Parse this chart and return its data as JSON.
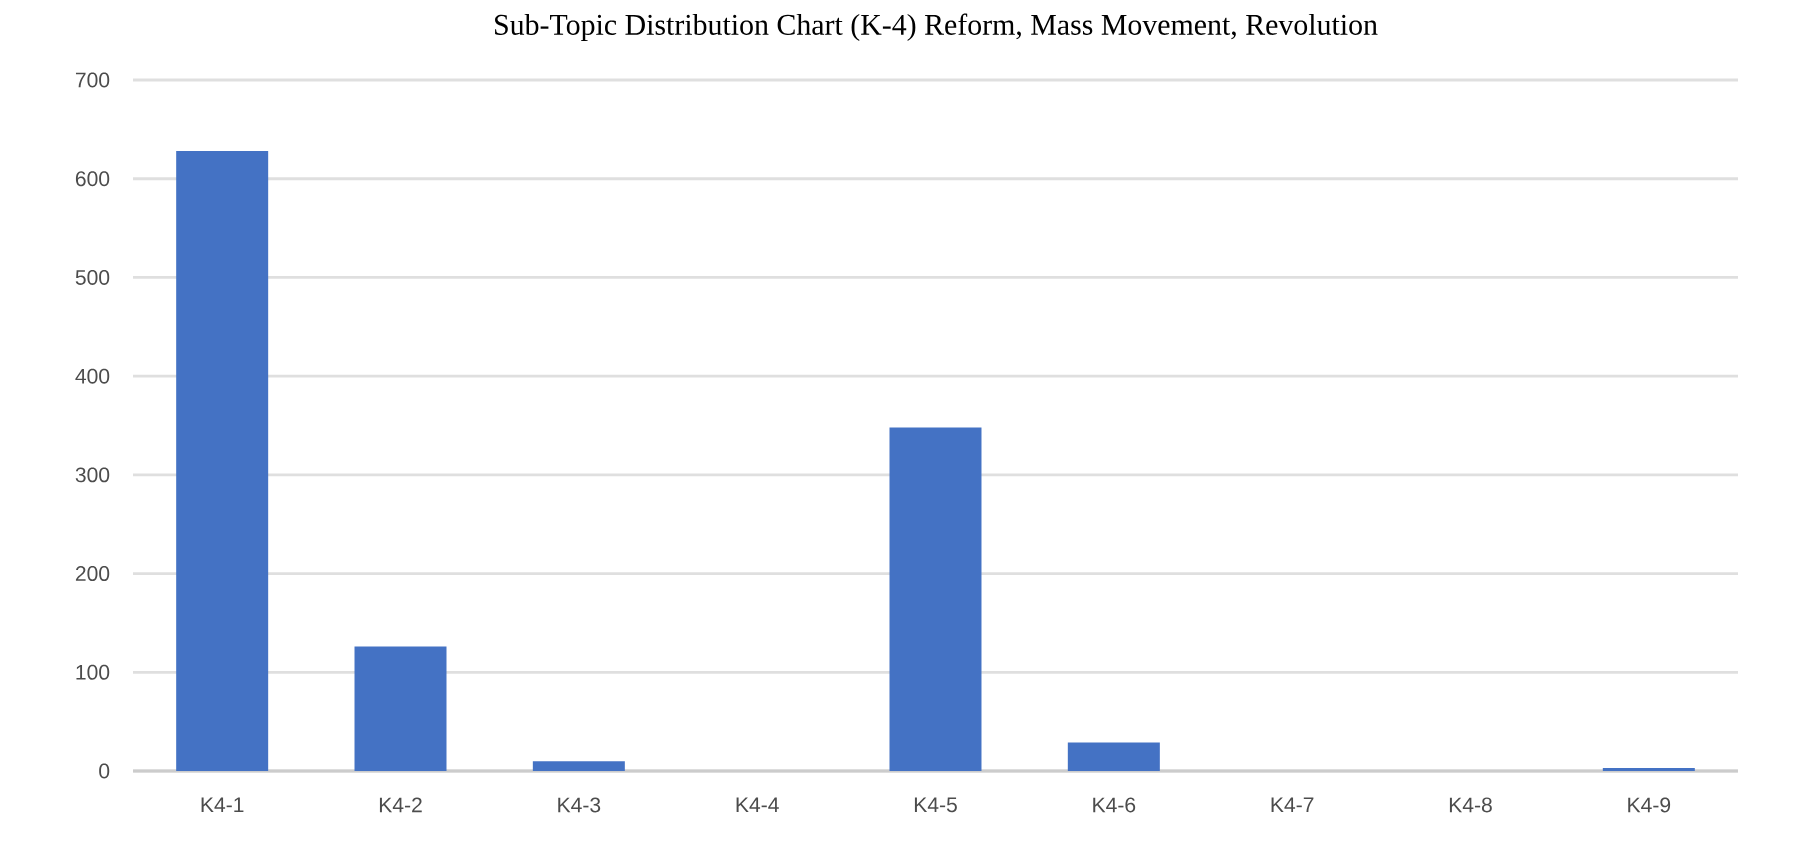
{
  "chart_data": {
    "type": "bar",
    "title": "Sub-Topic Distribution Chart (K-4) Reform, Mass Movement, Revolution",
    "categories": [
      "K4-1",
      "K4-2",
      "K4-3",
      "K4-4",
      "K4-5",
      "K4-6",
      "K4-7",
      "K4-8",
      "K4-9"
    ],
    "values": [
      628,
      126,
      10,
      0,
      348,
      29,
      0,
      0,
      3
    ],
    "color": "#4472c4",
    "ylim": [
      0,
      700
    ],
    "yticks": [
      0,
      100,
      200,
      300,
      400,
      500,
      600,
      700
    ],
    "grid": "y"
  }
}
